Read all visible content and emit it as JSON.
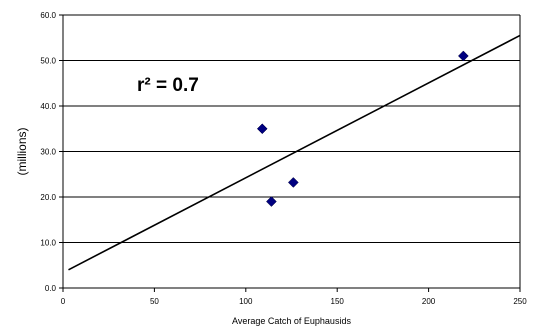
{
  "chart_data": {
    "type": "scatter",
    "xlabel": "Average Catch of Euphausids",
    "ylabel": "(millions)",
    "xlim": [
      0,
      250
    ],
    "ylim": [
      0,
      60
    ],
    "x_ticks": [
      "0",
      "50",
      "100",
      "150",
      "200",
      "250"
    ],
    "y_ticks": [
      "0.0",
      "10.0",
      "20.0",
      "30.0",
      "40.0",
      "50.0",
      "60.0"
    ],
    "grid": "horizontal",
    "points": [
      {
        "x": 109,
        "y": 35.0
      },
      {
        "x": 114,
        "y": 19.0
      },
      {
        "x": 126,
        "y": 23.2
      },
      {
        "x": 219,
        "y": 51.0
      }
    ],
    "trendline": {
      "x": [
        3,
        250
      ],
      "y": [
        4.0,
        55.5
      ]
    },
    "annotation": "r² = 0.7",
    "colors": {
      "marker": "#000080",
      "trendline": "#000000",
      "grid": "#000000"
    }
  }
}
